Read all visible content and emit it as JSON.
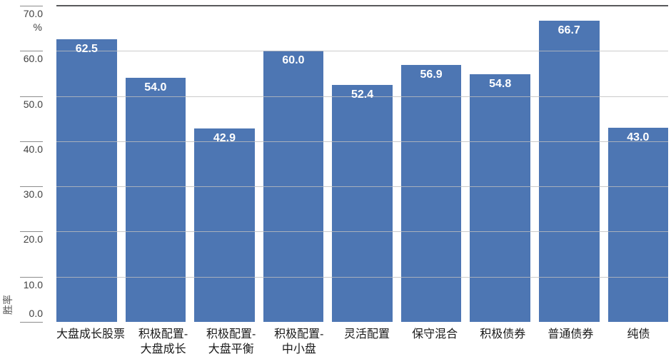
{
  "page": {
    "background": "#ffffff"
  },
  "chart_data": {
    "type": "bar",
    "title": "",
    "ylabel": "胜率",
    "y_unit": "%",
    "ylim": [
      0,
      70
    ],
    "yticks": [
      0,
      10,
      20,
      30,
      40,
      50,
      60,
      70
    ],
    "ytick_labels": [
      "0.0",
      "10.0",
      "20.0",
      "30.0",
      "40.0",
      "50.0",
      "60.0",
      "70.0"
    ],
    "grid": true,
    "legend_position": "none",
    "categories": [
      "大盘成长股票",
      "积极配置-大盘成长",
      "积极配置-大盘平衡",
      "积极配置-中小盘",
      "灵活配置",
      "保守混合",
      "积极债券",
      "普通债券",
      "纯债"
    ],
    "category_lines": [
      [
        "大盘成长股票"
      ],
      [
        "积极配置-",
        "大盘成长"
      ],
      [
        "积极配置-",
        "大盘平衡"
      ],
      [
        "积极配置-",
        "中小盘"
      ],
      [
        "灵活配置"
      ],
      [
        "保守混合"
      ],
      [
        "积极债券"
      ],
      [
        "普通债券"
      ],
      [
        "纯债"
      ]
    ],
    "values": [
      62.5,
      54.0,
      42.9,
      60.0,
      52.4,
      56.9,
      54.8,
      66.7,
      43.0
    ],
    "value_labels": [
      "62.5",
      "54.0",
      "42.9",
      "60.0",
      "52.4",
      "56.9",
      "54.8",
      "66.7",
      "43.0"
    ],
    "colors": {
      "bar": "#4d76b3",
      "value_label": "#ffffff",
      "gridline": "rgba(190,190,190,0.8)",
      "top_line": "#58595b",
      "tick_stub": "#8c8c8c",
      "tick_label": "#404040",
      "category_label": "#1a1a1a",
      "axis_title": "#595959"
    }
  }
}
